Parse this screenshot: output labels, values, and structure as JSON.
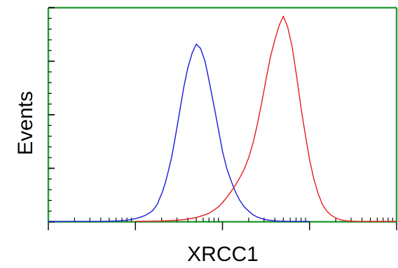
{
  "chart_data": {
    "type": "line",
    "title": "",
    "xlabel": "XRCC1",
    "ylabel": "Events",
    "x_scale": "log",
    "xlim": [
      1,
      10000
    ],
    "ylim": [
      0,
      100
    ],
    "grid": false,
    "legend": "none",
    "series": [
      {
        "color": "#1a1adb",
        "x": [
          1,
          2,
          3,
          4,
          5,
          6,
          7,
          8,
          9,
          10,
          11,
          12,
          13,
          14,
          15,
          16,
          17,
          18,
          19,
          20,
          22,
          24,
          26,
          28,
          30,
          33,
          36,
          40,
          45,
          50,
          56,
          63,
          70,
          80,
          90,
          100,
          112,
          126,
          141,
          158,
          178,
          200,
          224,
          251,
          282,
          316,
          355,
          398,
          447,
          501,
          562,
          631,
          708,
          794,
          891,
          1000
        ],
        "y": [
          0.2,
          0.2,
          0.2,
          0.2,
          0.3,
          0.4,
          0.5,
          0.8,
          1.1,
          1.5,
          2,
          2.5,
          3,
          3.8,
          4.5,
          5.5,
          7,
          8.5,
          11,
          13,
          18,
          24,
          30,
          37,
          44,
          54,
          63,
          72,
          79,
          83,
          81,
          75,
          66,
          54,
          43,
          33,
          25,
          19,
          14,
          10,
          7,
          5,
          3.3,
          2.2,
          1.5,
          1,
          0.7,
          0.5,
          0.3,
          0.3,
          0.2,
          0.2,
          0.2,
          0.2,
          0.2,
          0.2
        ]
      },
      {
        "color": "#e81c1c",
        "x": [
          10,
          15,
          20,
          25,
          30,
          35,
          40,
          50,
          60,
          70,
          80,
          90,
          100,
          110,
          125,
          140,
          160,
          180,
          200,
          225,
          250,
          280,
          315,
          355,
          400,
          450,
          500,
          560,
          630,
          710,
          800,
          900,
          1000,
          1120,
          1260,
          1410,
          1580,
          1780,
          2000,
          2240,
          2510,
          2820,
          3160,
          3550,
          3980,
          4470,
          5010,
          6000,
          8000,
          10000
        ],
        "y": [
          0.2,
          0.3,
          0.4,
          0.6,
          0.8,
          1,
          1.3,
          2,
          3,
          4,
          5.5,
          7,
          9,
          11,
          14,
          17,
          21,
          25,
          30,
          37,
          45,
          55,
          66,
          77,
          85,
          92,
          96,
          91,
          82,
          68,
          53,
          40,
          29,
          20,
          13,
          8,
          5,
          3,
          1.8,
          1,
          0.6,
          0.4,
          0.3,
          0.2,
          0.2,
          0.2,
          0.2,
          0.2,
          0.2,
          0.2
        ]
      }
    ]
  }
}
